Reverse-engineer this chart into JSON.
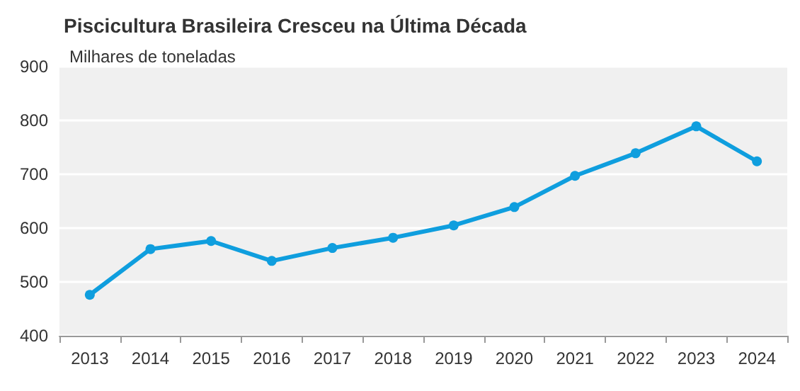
{
  "chart_data": {
    "type": "line",
    "title": "Piscicultura Brasileira Cresceu na Última Década",
    "ylabel": "Milhares de toneladas",
    "categories": [
      "2013",
      "2014",
      "2015",
      "2016",
      "2017",
      "2018",
      "2019",
      "2020",
      "2021",
      "2022",
      "2023",
      "2024"
    ],
    "series": [
      {
        "color": "#0f9ede",
        "values": [
          476,
          561,
          576,
          539,
          563,
          582,
          605,
          639,
          697,
          739,
          789,
          724
        ]
      }
    ],
    "ylim": [
      400,
      900
    ],
    "yticks": [
      400,
      500,
      600,
      700,
      800,
      900
    ],
    "grid": "y",
    "marker": "circle",
    "line_style": "solid"
  }
}
